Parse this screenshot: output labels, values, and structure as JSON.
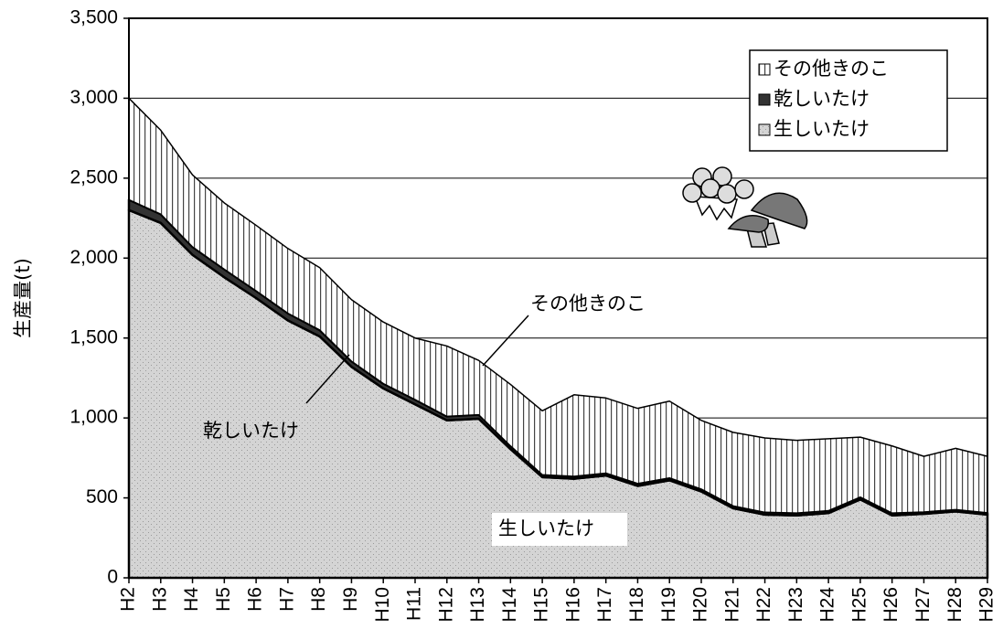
{
  "chart_data": {
    "type": "stacked_area",
    "y_label": "生産量(t)",
    "categories": [
      "H2",
      "H3",
      "H4",
      "H5",
      "H6",
      "H7",
      "H8",
      "H9",
      "H10",
      "H11",
      "H12",
      "H13",
      "H14",
      "H15",
      "H16",
      "H17",
      "H18",
      "H19",
      "H20",
      "H21",
      "H22",
      "H23",
      "H24",
      "H25",
      "H26",
      "H27",
      "H28",
      "H29"
    ],
    "series": [
      {
        "name": "生しいたけ",
        "color": "#d4d4d4",
        "values": [
          2300,
          2220,
          2020,
          1880,
          1750,
          1610,
          1510,
          1320,
          1185,
          1085,
          985,
          995,
          805,
          630,
          620,
          640,
          575,
          610,
          540,
          435,
          395,
          390,
          405,
          490,
          390,
          400,
          415,
          395
        ]
      },
      {
        "name": "乾しいたけ",
        "color": "#333333",
        "values": [
          65,
          55,
          50,
          50,
          45,
          45,
          40,
          35,
          30,
          30,
          25,
          25,
          20,
          15,
          15,
          15,
          15,
          15,
          15,
          15,
          15,
          15,
          15,
          15,
          15,
          12,
          12,
          12
        ]
      },
      {
        "name": "その他きのこ",
        "color": "#ffffff",
        "values": [
          635,
          525,
          450,
          415,
          410,
          405,
          390,
          385,
          385,
          385,
          440,
          340,
          385,
          400,
          510,
          470,
          470,
          480,
          430,
          460,
          465,
          455,
          450,
          375,
          420,
          348,
          383,
          353
        ]
      }
    ],
    "ylim": [
      0,
      3500
    ],
    "yticks": [
      0,
      500,
      {
        "value": 1000,
        "label": "1,000"
      },
      {
        "value": 1500,
        "label": "1,500"
      },
      {
        "value": 2000,
        "label": "2,000"
      },
      {
        "value": 2500,
        "label": "2,500"
      },
      {
        "value": 3000,
        "label": "3,000"
      },
      {
        "value": 3500,
        "label": "3,500"
      }
    ],
    "grid": true,
    "legend": "top-right",
    "annotations": [
      "その他きのこ",
      "乾しいたけ",
      "生しいたけ"
    ]
  }
}
